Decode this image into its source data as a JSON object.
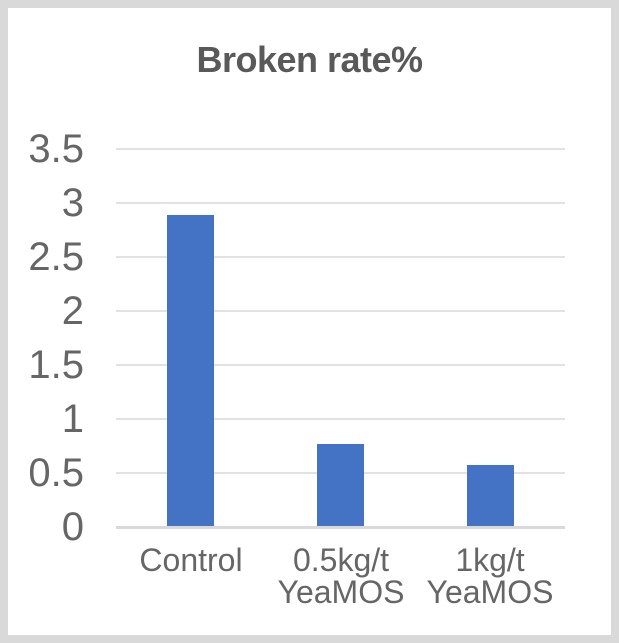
{
  "window": {
    "background_color": "#ffffff",
    "border_color": "#d9d9d9"
  },
  "chart_data": {
    "type": "bar",
    "title": "Broken rate%",
    "categories": [
      "Control",
      "0.5kg/t\nYeaMOS",
      "1kg/t\nYeaMOS"
    ],
    "values": [
      2.89,
      0.77,
      0.57
    ],
    "xlabel": "",
    "ylabel": "",
    "ylim": [
      0,
      3.5
    ],
    "ytick_step": 0.5,
    "ytick_labels": [
      "0",
      "0.5",
      "1",
      "1.5",
      "2",
      "2.5",
      "3",
      "3.5"
    ],
    "grid": true,
    "legend": false,
    "bar_color": "#4472c4",
    "title_color": "#595959",
    "tick_label_color": "#666666",
    "gridline_color": "#e2e2e2",
    "axis_line_color": "#d9d9d9"
  }
}
